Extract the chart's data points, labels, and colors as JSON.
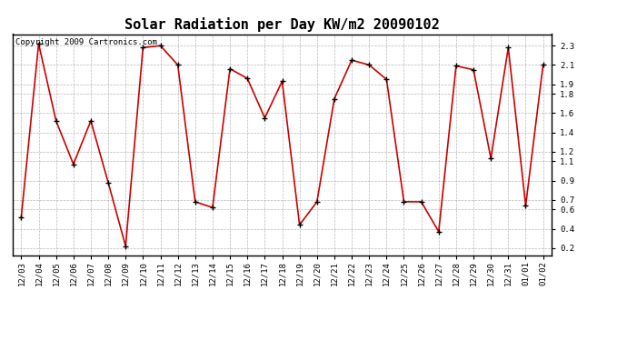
{
  "title": "Solar Radiation per Day KW/m2 20090102",
  "copyright_text": "Copyright 2009 Cartronics.com",
  "dates": [
    "12/03",
    "12/04",
    "12/05",
    "12/06",
    "12/07",
    "12/08",
    "12/09",
    "12/10",
    "12/11",
    "12/12",
    "12/13",
    "12/14",
    "12/15",
    "12/16",
    "12/17",
    "12/18",
    "12/19",
    "12/20",
    "12/21",
    "12/22",
    "12/23",
    "12/24",
    "12/25",
    "12/26",
    "12/27",
    "12/28",
    "12/29",
    "12/30",
    "12/31",
    "01/01",
    "01/02"
  ],
  "values": [
    0.52,
    2.32,
    1.52,
    1.07,
    1.52,
    0.88,
    0.22,
    2.28,
    2.3,
    2.1,
    0.68,
    0.62,
    2.06,
    1.96,
    1.55,
    1.93,
    0.44,
    0.68,
    1.75,
    2.15,
    2.1,
    1.95,
    0.68,
    0.68,
    0.37,
    2.09,
    2.05,
    1.13,
    2.28,
    0.64,
    2.1
  ],
  "line_color": "#cc0000",
  "marker_color": "#000000",
  "bg_color": "#ffffff",
  "plot_bg_color": "#ffffff",
  "grid_color": "#999999",
  "ylim": [
    0.12,
    2.42
  ],
  "yticks": [
    0.2,
    0.4,
    0.6,
    0.7,
    0.9,
    1.1,
    1.2,
    1.4,
    1.6,
    1.8,
    1.9,
    2.1,
    2.3
  ],
  "title_fontsize": 11,
  "tick_fontsize": 6.5,
  "copyright_fontsize": 6.5
}
